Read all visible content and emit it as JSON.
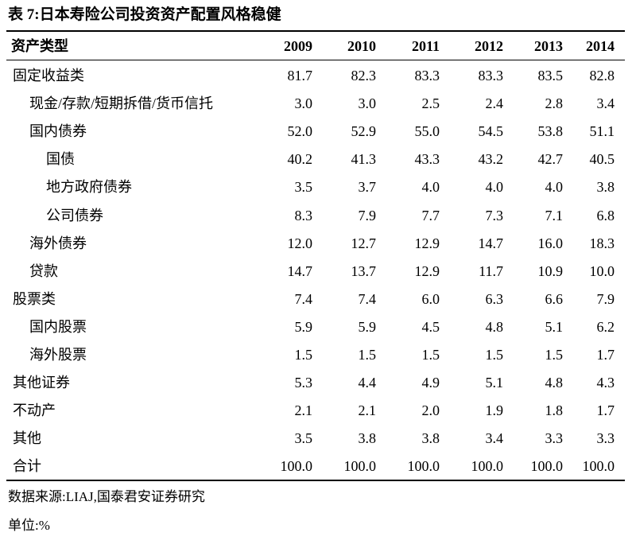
{
  "title": "表 7:日本寿险公司投资资产配置风格稳健",
  "table": {
    "header": [
      "资产类型",
      "2009",
      "2010",
      "2011",
      "2012",
      "2013",
      "2014"
    ],
    "rows": [
      [
        "固定收益类",
        "81.7",
        "82.3",
        "83.3",
        "83.3",
        "83.5",
        "82.8"
      ],
      [
        "现金/存款/短期拆借/货币信托",
        "3.0",
        "3.0",
        "2.5",
        "2.4",
        "2.8",
        "3.4"
      ],
      [
        "国内债券",
        "52.0",
        "52.9",
        "55.0",
        "54.5",
        "53.8",
        "51.1"
      ],
      [
        "国债",
        "40.2",
        "41.3",
        "43.3",
        "43.2",
        "42.7",
        "40.5"
      ],
      [
        "地方政府债券",
        "3.5",
        "3.7",
        "4.0",
        "4.0",
        "4.0",
        "3.8"
      ],
      [
        "公司债券",
        "8.3",
        "7.9",
        "7.7",
        "7.3",
        "7.1",
        "6.8"
      ],
      [
        "海外债券",
        "12.0",
        "12.7",
        "12.9",
        "14.7",
        "16.0",
        "18.3"
      ],
      [
        "贷款",
        "14.7",
        "13.7",
        "12.9",
        "11.7",
        "10.9",
        "10.0"
      ],
      [
        "股票类",
        "7.4",
        "7.4",
        "6.0",
        "6.3",
        "6.6",
        "7.9"
      ],
      [
        "国内股票",
        "5.9",
        "5.9",
        "4.5",
        "4.8",
        "5.1",
        "6.2"
      ],
      [
        "海外股票",
        "1.5",
        "1.5",
        "1.5",
        "1.5",
        "1.5",
        "1.7"
      ],
      [
        "其他证券",
        "5.3",
        "4.4",
        "4.9",
        "5.1",
        "4.8",
        "4.3"
      ],
      [
        "不动产",
        "2.1",
        "2.1",
        "2.0",
        "1.9",
        "1.8",
        "1.7"
      ],
      [
        "其他",
        "3.5",
        "3.8",
        "3.8",
        "3.4",
        "3.3",
        "3.3"
      ],
      [
        "合计",
        "100.0",
        "100.0",
        "100.0",
        "100.0",
        "100.0",
        "100.0"
      ]
    ]
  },
  "source": "数据来源:LIAJ,国泰君安证券研究",
  "unit": "单位:%"
}
